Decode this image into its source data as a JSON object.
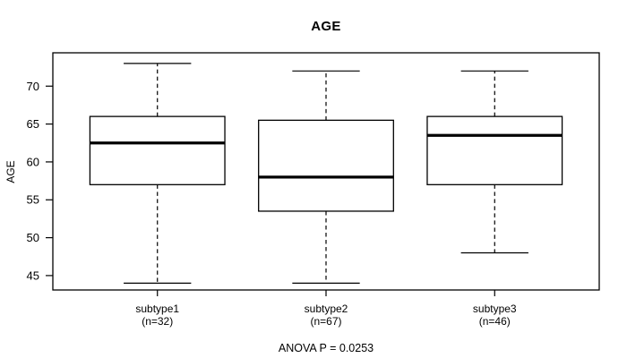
{
  "chart_data": {
    "type": "boxplot",
    "title": "AGE",
    "xlabel": "",
    "ylabel": "AGE",
    "annotation": "ANOVA P = 0.0253",
    "ylim": [
      43.1,
      74.4
    ],
    "yticks": [
      45,
      50,
      55,
      60,
      65,
      70
    ],
    "grid": false,
    "legend": null,
    "categories": [
      {
        "label": "subtype1",
        "sublabel": "(n=32)"
      },
      {
        "label": "subtype2",
        "sublabel": "(n=67)"
      },
      {
        "label": "subtype3",
        "sublabel": "(n=46)"
      }
    ],
    "series": [
      {
        "name": "subtype1",
        "n": 32,
        "whisker_low": 44,
        "q1": 57,
        "median": 62.5,
        "q3": 66,
        "whisker_high": 73,
        "outliers": []
      },
      {
        "name": "subtype2",
        "n": 67,
        "whisker_low": 44,
        "q1": 53.5,
        "median": 58,
        "q3": 65.5,
        "whisker_high": 72,
        "outliers": []
      },
      {
        "name": "subtype3",
        "n": 46,
        "whisker_low": 48,
        "q1": 57,
        "median": 63.5,
        "q3": 66,
        "whisker_high": 72,
        "outliers": []
      }
    ],
    "colors": {
      "line": "#000000",
      "median": "#000000",
      "box_fill": "#ffffff",
      "background": "#ffffff",
      "text": "#000000"
    }
  }
}
